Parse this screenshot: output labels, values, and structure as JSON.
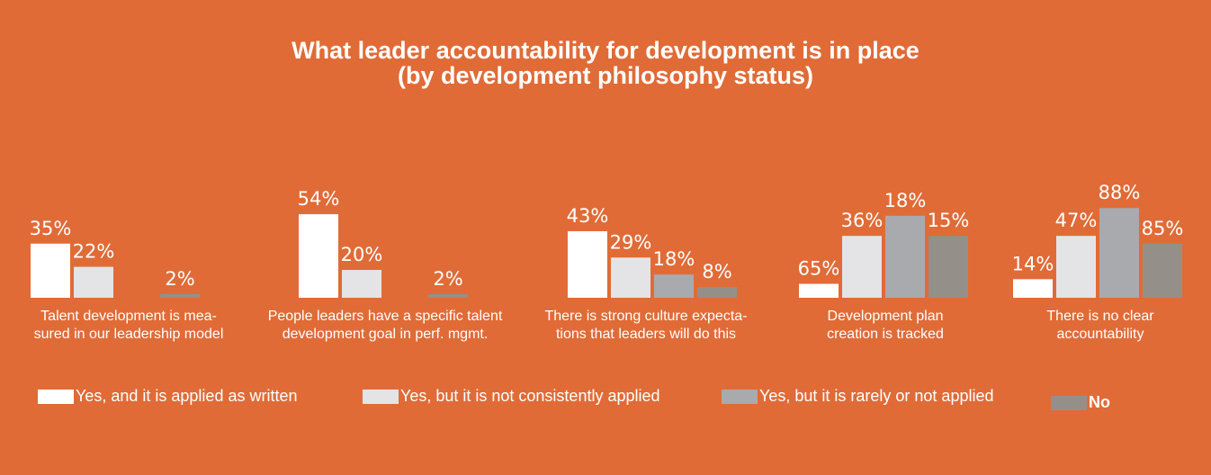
{
  "title": {
    "line1": "What leader accountability for development is in place",
    "line2": "(by development philosophy status)"
  },
  "colors": {
    "background": "#E06B37",
    "series": [
      "#FFFFFF",
      "#E4E4E6",
      "#A9AAAE",
      "#949089"
    ]
  },
  "chart_data": {
    "type": "bar",
    "title": "What leader accountability for development is in place (by development philosophy status)",
    "categories": [
      [
        "Talent development is mea-",
        "sured in our leadership model"
      ],
      [
        "People leaders have a specific talent",
        "development goal in perf. mgmt."
      ],
      [
        "There is strong culture expecta-",
        "tions that leaders will do this"
      ],
      [
        "Development plan",
        "creation is tracked"
      ],
      [
        "There is no clear",
        "accountability"
      ]
    ],
    "series": [
      {
        "name": "Yes, and it is applied as written",
        "values": [
          35,
          54,
          43,
          65,
          14
        ]
      },
      {
        "name": "Yes, but it is not consistently applied",
        "values": [
          22,
          20,
          29,
          36,
          47
        ]
      },
      {
        "name": "Yes, but it is rarely or not applied",
        "values": [
          null,
          null,
          18,
          18,
          88
        ]
      },
      {
        "name": "No",
        "values": [
          2,
          2,
          8,
          15,
          85
        ]
      }
    ],
    "bar_heights_pct_of_max": [
      [
        35,
        54,
        43,
        9,
        12
      ],
      [
        20,
        18,
        26,
        40,
        40
      ],
      [
        0,
        0,
        15,
        53,
        58
      ],
      [
        2,
        2,
        7,
        40,
        35
      ]
    ],
    "value_unit": "%",
    "xlabel": "",
    "ylabel": ""
  },
  "legend": [
    {
      "label": "Yes, and it is applied as written"
    },
    {
      "label": "Yes, but it is not consistently applied"
    },
    {
      "label": "Yes, but it is rarely or not applied"
    },
    {
      "label": "No"
    }
  ]
}
